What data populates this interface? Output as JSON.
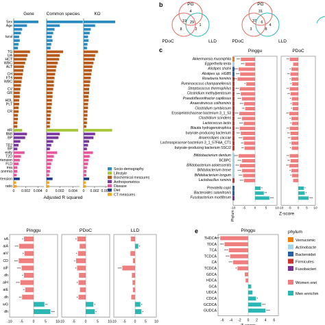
{
  "colors": {
    "socio": "#2c8cbf",
    "lifestyle": "#a8c63a",
    "biochemical": "#b85a1a",
    "anthropometrics": "#7a3aa0",
    "disease": "#e8569c",
    "diet": "#1f3e8a",
    "ct": "#f2a81d",
    "women": "#ef7f7f",
    "men": "#2bb7b3",
    "verrucomicrobia": "#f07d00",
    "actinobacteria": "#a4d4ea",
    "bacteroidetes": "#2560a8",
    "firmicutes": "#d2322c",
    "fusobacteria": "#7b3294"
  },
  "panel_a": {
    "col_titles": [
      "Gene",
      "Common species",
      "KO"
    ],
    "row_labels": [
      "Sex",
      "Age",
      "",
      "",
      "tural",
      "",
      "",
      "",
      "TG",
      "UA",
      "HCT",
      "WBC",
      "ALT",
      "",
      "CH",
      "FT4",
      "WBC",
      "",
      "CV",
      "GR",
      "",
      "HDL",
      "PLT",
      "",
      "CR",
      "",
      "",
      "",
      "",
      "HR",
      "BMI",
      "BP",
      "",
      "TE2",
      "BP",
      "esity",
      "T2D",
      "ertension",
      "FLD",
      "mia",
      "anemia",
      "",
      "ertension",
      "",
      "ratio"
    ],
    "bar_values": [
      [
        0.0041,
        0.0022,
        0.0014,
        0.0012,
        0.0009,
        0.001,
        0.0008,
        0.0007,
        0.0027,
        0.0023,
        0.0021,
        0.0019,
        0.0017,
        0.0016,
        0.0015,
        0.0014,
        0.0013,
        0.0012,
        0.0011,
        0.001,
        0.001,
        0.0009,
        0.0009,
        0.0008,
        0.0008,
        0.0007,
        0.0007,
        0.0006,
        0.0006,
        0.0014,
        0.0022,
        0.0019,
        0.0011,
        0.0008,
        0.0006,
        0.0018,
        0.0012,
        0.001,
        0.0008,
        0.0006,
        0.0006,
        0.0005,
        0.001,
        0.0004,
        0.0005
      ],
      [
        0.0055,
        0.002,
        0.0012,
        0.001,
        0.0008,
        0.0009,
        0.0007,
        0.0006,
        0.0025,
        0.002,
        0.0019,
        0.0017,
        0.0015,
        0.0014,
        0.0013,
        0.0012,
        0.0011,
        0.0011,
        0.001,
        0.0009,
        0.0009,
        0.0008,
        0.0008,
        0.0007,
        0.0007,
        0.0006,
        0.0006,
        0.0005,
        0.0005,
        0.0048,
        0.002,
        0.0018,
        0.001,
        0.0007,
        0.0005,
        0.0016,
        0.0011,
        0.0009,
        0.0007,
        0.0006,
        0.0005,
        0.0004,
        0.0009,
        0.0004,
        0.0004
      ],
      [
        0.006,
        0.0021,
        0.0013,
        0.0011,
        0.0008,
        0.0009,
        0.0007,
        0.0006,
        0.0026,
        0.0021,
        0.002,
        0.0018,
        0.0016,
        0.0015,
        0.0014,
        0.0013,
        0.0012,
        0.0011,
        0.001,
        0.001,
        0.0009,
        0.0009,
        0.0008,
        0.0008,
        0.0007,
        0.0007,
        0.0006,
        0.0006,
        0.0005,
        0.0052,
        0.0021,
        0.0018,
        0.001,
        0.0008,
        0.0006,
        0.0017,
        0.0011,
        0.0009,
        0.0008,
        0.0006,
        0.0005,
        0.0005,
        0.001,
        0.0004,
        0.0004
      ]
    ],
    "row_categories": [
      "socio",
      "socio",
      "socio",
      "socio",
      "socio",
      "socio",
      "socio",
      "socio",
      "biochemical",
      "biochemical",
      "biochemical",
      "biochemical",
      "biochemical",
      "biochemical",
      "biochemical",
      "biochemical",
      "biochemical",
      "biochemical",
      "biochemical",
      "biochemical",
      "biochemical",
      "biochemical",
      "biochemical",
      "biochemical",
      "biochemical",
      "biochemical",
      "biochemical",
      "biochemical",
      "biochemical",
      "lifestyle",
      "anthropometrics",
      "anthropometrics",
      "anthropometrics",
      "anthropometrics",
      "anthropometrics",
      "disease",
      "disease",
      "disease",
      "disease",
      "disease",
      "disease",
      "disease",
      "diet",
      "ct",
      "ct"
    ],
    "x_ticks": [
      "0",
      "0.002",
      "0.004"
    ],
    "x_label": "Adjusted R squared",
    "legend": [
      {
        "key": "socio",
        "label": "Socio-demography"
      },
      {
        "key": "lifestyle",
        "label": "Lifestyle"
      },
      {
        "key": "biochemical",
        "label": "Biochemical measures"
      },
      {
        "key": "anthropometrics",
        "label": "Anthropometrics"
      },
      {
        "key": "disease",
        "label": "Disease"
      },
      {
        "key": "diet",
        "label": "Diet"
      },
      {
        "key": "ct",
        "label": "CT measures"
      }
    ]
  },
  "panel_b": {
    "letter": "b",
    "venn1": {
      "top": "PG",
      "left": "PDoC",
      "right": "LLD",
      "regions": [
        "4",
        "19",
        "29",
        "8",
        "2",
        "1"
      ]
    },
    "venn2": {
      "top": "PG",
      "left": "PDoC",
      "right": "LLD",
      "regions": [
        "31",
        "37",
        "6",
        "3",
        "8",
        "4"
      ]
    }
  },
  "panel_c": {
    "letter": "c",
    "col_titles": [
      "Pinggu",
      "PDoC"
    ],
    "species": [
      {
        "name": "Akkermansia muciniphila",
        "italic": true,
        "phylum": "verrucomicrobia",
        "z": [
          -6.5,
          -5.0
        ],
        "stars": [
          "***",
          "**"
        ]
      },
      {
        "name": "Eggerthella lenta",
        "italic": true,
        "phylum": "actinobacteria",
        "z": [
          -4.5,
          -3.0
        ],
        "stars": [
          "***",
          ""
        ]
      },
      {
        "name": "Alistipes shahii",
        "italic": true,
        "phylum": "bacteroidetes",
        "z": [
          -7.5,
          -4.0
        ],
        "stars": [
          "***",
          "*"
        ]
      },
      {
        "name": "Alistipes sp. HGB5",
        "italic": true,
        "phylum": "bacteroidetes",
        "z": [
          -6.8,
          -4.6
        ],
        "stars": [
          "***",
          "**"
        ]
      },
      {
        "name": "Roseburia hominis",
        "italic": true,
        "phylum": "firmicutes",
        "z": [
          -8.0,
          -4.0
        ],
        "stars": [
          "***",
          "*"
        ]
      },
      {
        "name": "Ruminococcus champanellensis",
        "italic": true,
        "phylum": "firmicutes",
        "z": [
          -4.0,
          -3.6
        ],
        "stars": [
          "*",
          "*"
        ]
      },
      {
        "name": "Streptococcus thermophilus",
        "italic": true,
        "phylum": "firmicutes",
        "z": [
          -7.0,
          -5.0
        ],
        "stars": [
          "***",
          "**"
        ]
      },
      {
        "name": "Clostridium methylpentosum",
        "italic": true,
        "phylum": "firmicutes",
        "z": [
          -6.5,
          -4.5
        ],
        "stars": [
          "***",
          "**"
        ]
      },
      {
        "name": "Pseudoflavonifractor capillosus",
        "italic": true,
        "phylum": "firmicutes",
        "z": [
          -6.0,
          -3.8
        ],
        "stars": [
          "***",
          "*"
        ]
      },
      {
        "name": "Anaerotruncus colihominis",
        "italic": true,
        "phylum": "firmicutes",
        "z": [
          -5.0,
          -3.5
        ],
        "stars": [
          "***",
          "*"
        ]
      },
      {
        "name": "Clostridium symbiosum",
        "italic": true,
        "phylum": "firmicutes",
        "z": [
          -4.5,
          -3.2
        ],
        "stars": [
          "**",
          "*"
        ]
      },
      {
        "name": "Erysipelotrichaceae bacterium 3_1_53",
        "italic": false,
        "phylum": "firmicutes",
        "z": [
          -7.2,
          -5.2
        ],
        "stars": [
          "***",
          "**"
        ]
      },
      {
        "name": "Clostridium scindens",
        "italic": true,
        "phylum": "firmicutes",
        "z": [
          -6.0,
          -4.0
        ],
        "stars": [
          "***",
          "*"
        ]
      },
      {
        "name": "Lactococcus lactis",
        "italic": true,
        "phylum": "firmicutes",
        "z": [
          -5.2,
          -3.6
        ],
        "stars": [
          "***",
          "*"
        ]
      },
      {
        "name": "Blautia hydrogenotrophica",
        "italic": true,
        "phylum": "firmicutes",
        "z": [
          -7.0,
          -5.0
        ],
        "stars": [
          "***",
          "**"
        ]
      },
      {
        "name": "butyrate-producing bacterium",
        "italic": false,
        "phylum": "firmicutes",
        "z": [
          -6.5,
          -4.6
        ],
        "stars": [
          "***",
          "**"
        ]
      },
      {
        "name": "Anaerostipes caccae",
        "italic": true,
        "phylum": "firmicutes",
        "z": [
          -5.5,
          -4.2
        ],
        "stars": [
          "***",
          "**"
        ]
      },
      {
        "name": "Lachnospiraceae bacterium 3_1_57FAA_CT1",
        "italic": false,
        "phylum": "firmicutes",
        "z": [
          -5.0,
          -4.0
        ],
        "stars": [
          "**",
          "*"
        ]
      },
      {
        "name": "butyrate-producing bacterium SSC/2",
        "italic": false,
        "phylum": "firmicutes",
        "z": [
          -4.8,
          -3.8
        ],
        "stars": [
          "**",
          "*"
        ]
      },
      {
        "name": "Bifidobacterium dentium",
        "italic": true,
        "phylum": "actinobacteria",
        "z": [
          -7.5,
          -5.0
        ],
        "stars": [
          "***",
          "**"
        ]
      },
      {
        "name": "BCBPC",
        "italic": false,
        "phylum": "actinobacteria",
        "z": [
          -6.0,
          -4.5
        ],
        "stars": [
          "***",
          "**"
        ]
      },
      {
        "name": "Bifidobacterium adolescentis",
        "italic": true,
        "phylum": "actinobacteria",
        "z": [
          -7.0,
          -5.2
        ],
        "stars": [
          "***",
          "**"
        ]
      },
      {
        "name": "Bifidobacterium breve",
        "italic": true,
        "phylum": "actinobacteria",
        "z": [
          -6.0,
          -4.0
        ],
        "stars": [
          "***",
          "*"
        ]
      },
      {
        "name": "Bifidobacterium longum",
        "italic": true,
        "phylum": "actinobacteria",
        "z": [
          -5.5,
          -3.6
        ],
        "stars": [
          "***",
          "*"
        ]
      },
      {
        "name": "Lactobacillus ruminis",
        "italic": true,
        "phylum": "firmicutes",
        "z": [
          -5.0,
          -3.0
        ],
        "stars": [
          "***",
          ""
        ]
      },
      {
        "name": "Prevotella copri",
        "italic": true,
        "phylum": "bacteroidetes",
        "z": [
          2.5,
          3.2
        ],
        "stars": [
          "*",
          "*"
        ]
      },
      {
        "name": "Bacteroides salanitronis",
        "italic": true,
        "phylum": "bacteroidetes",
        "z": [
          4.0,
          3.8
        ],
        "stars": [
          "**",
          "*"
        ]
      },
      {
        "name": "Fusobacterium mortiferum",
        "italic": true,
        "phylum": "fusobacteria",
        "z": [
          6.5,
          6.0
        ],
        "stars": [
          "***",
          "***"
        ]
      }
    ],
    "x_ticks": [
      "-10",
      "-5",
      "0",
      "5",
      "10"
    ],
    "x_label": "Z-score",
    "phylum_strip_label": "Phylum"
  },
  "panel_d": {
    "col_titles": [
      "Pinggu",
      "PDoC",
      "LLD"
    ],
    "row_labels": [
      "sA",
      "aiA",
      "aiV",
      "CD",
      "aiF",
      "dh",
      "aiH",
      "aiE",
      "dh",
      "wG",
      "dh"
    ],
    "z": [
      [
        -4.0,
        -6.0,
        -3.8,
        -6.2,
        -5.0,
        -4.0,
        -5.5,
        -3.5,
        -4.8,
        4.5,
        7.0
      ],
      [
        -3.5,
        -2.5,
        -3.2,
        -4.0,
        -3.6,
        -2.8,
        -3.0,
        -2.4,
        -3.0,
        3.2,
        3.8
      ],
      [
        -2.0,
        1.5,
        -2.2,
        -1.0,
        -6.0,
        -1.5,
        -1.2,
        -1.0,
        -1.8,
        2.5,
        3.0
      ]
    ],
    "stars": [
      [
        "*",
        "***",
        "*",
        "***",
        "***",
        "*",
        "***",
        "*",
        "**",
        "**",
        "***"
      ],
      [
        "*",
        "",
        "*",
        "*",
        "*",
        "",
        "*",
        "",
        "*",
        "*",
        "*"
      ],
      [
        "",
        "*",
        "",
        "",
        "***",
        "",
        "",
        "",
        "",
        "*",
        "*"
      ]
    ],
    "x_ticks": [
      "-10",
      "-5",
      "0",
      "5",
      "10"
    ],
    "x_label": "Z-score"
  },
  "panel_e": {
    "letter": "e",
    "title": "Pinggu",
    "rows": [
      {
        "name": "THDCA",
        "z": -6.5,
        "stars": "***"
      },
      {
        "name": "TDCA",
        "z": -5.5,
        "stars": "***"
      },
      {
        "name": "TCA",
        "z": -4.5,
        "stars": "***"
      },
      {
        "name": "TCDCA",
        "z": -4.2,
        "stars": "***"
      },
      {
        "name": "CA",
        "z": -3.5,
        "stars": "***"
      },
      {
        "name": "TCDCA",
        "z": -2.5,
        "stars": "*"
      },
      {
        "name": "GDCA",
        "z": -0.8,
        "stars": ""
      },
      {
        "name": "HDCA",
        "z": -0.6,
        "stars": ""
      },
      {
        "name": "GCA",
        "z": 0.7,
        "stars": ""
      },
      {
        "name": "UDCA",
        "z": 1.0,
        "stars": ""
      },
      {
        "name": "CDCA",
        "z": 1.8,
        "stars": "*"
      },
      {
        "name": "GCDCA",
        "z": 3.0,
        "stars": "***"
      },
      {
        "name": "GUDCA",
        "z": 4.0,
        "stars": "***"
      }
    ],
    "x_ticks": [
      "-6",
      "-4",
      "-2",
      "0",
      "2",
      "4",
      "6"
    ],
    "x_label": "Z-score"
  },
  "phylum_legend": {
    "title": "phylum",
    "items": [
      {
        "key": "verrucomicrobia",
        "label": "Verrucomic"
      },
      {
        "key": "actinobacteria",
        "label": "Actinobacte"
      },
      {
        "key": "bacteroidetes",
        "label": "Bacteroidet"
      },
      {
        "key": "firmicutes",
        "label": "Firmicutes"
      },
      {
        "key": "fusobacteria",
        "label": "Fusobacteri"
      }
    ]
  },
  "enrich_legend": [
    {
      "key": "women",
      "label": "Women enri"
    },
    {
      "key": "men",
      "label": "Men enrichm"
    }
  ]
}
